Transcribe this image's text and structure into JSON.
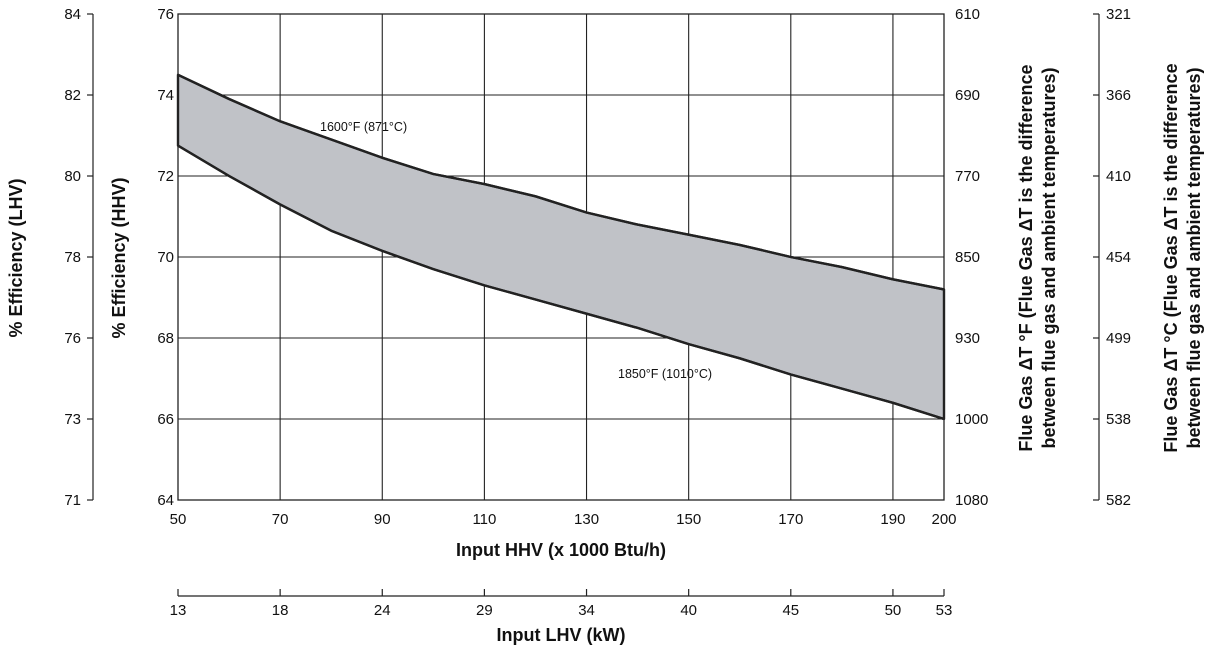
{
  "chart_data": {
    "type": "area",
    "x_axis_hhv": {
      "label": "Input HHV (x 1000 Btu/h)",
      "ticks": [
        50,
        70,
        90,
        110,
        130,
        150,
        170,
        190,
        200
      ],
      "range": [
        50,
        200
      ]
    },
    "x_axis_lhv": {
      "label": "Input LHV (kW)",
      "ticks": [
        {
          "label": "13",
          "at_hhv": 50
        },
        {
          "label": "18",
          "at_hhv": 70
        },
        {
          "label": "24",
          "at_hhv": 90
        },
        {
          "label": "29",
          "at_hhv": 110
        },
        {
          "label": "34",
          "at_hhv": 130
        },
        {
          "label": "40",
          "at_hhv": 150
        },
        {
          "label": "45",
          "at_hhv": 170
        },
        {
          "label": "50",
          "at_hhv": 190
        },
        {
          "label": "53",
          "at_hhv": 200
        }
      ]
    },
    "y_axis_hhv": {
      "label": "% Efficiency (HHV)",
      "ticks": [
        64,
        66,
        68,
        70,
        72,
        74,
        76
      ],
      "range": [
        64,
        76
      ]
    },
    "y_axis_lhv": {
      "label": "% Efficiency (LHV)",
      "ticks": [
        {
          "label": "71",
          "at_hhv": 64
        },
        {
          "label": "73",
          "at_hhv": 66
        },
        {
          "label": "76",
          "at_hhv": 68
        },
        {
          "label": "78",
          "at_hhv": 70
        },
        {
          "label": "80",
          "at_hhv": 72
        },
        {
          "label": "82",
          "at_hhv": 74
        },
        {
          "label": "84",
          "at_hhv": 76
        }
      ]
    },
    "y_axis_flue_f": {
      "label_line1": "Flue Gas ΔT °F (Flue Gas ΔT is the difference",
      "label_line2": "between flue gas and ambient temperatures)",
      "ticks": [
        {
          "label": "610",
          "at_hhv": 76
        },
        {
          "label": "690",
          "at_hhv": 74
        },
        {
          "label": "770",
          "at_hhv": 72
        },
        {
          "label": "850",
          "at_hhv": 70
        },
        {
          "label": "930",
          "at_hhv": 68
        },
        {
          "label": "1000",
          "at_hhv": 66
        },
        {
          "label": "1080",
          "at_hhv": 64
        }
      ]
    },
    "y_axis_flue_c": {
      "label_line1": "Flue Gas ΔT °C (Flue Gas ΔT is the difference",
      "label_line2": "between flue gas and ambient temperatures)",
      "ticks": [
        {
          "label": "321",
          "at_hhv": 76
        },
        {
          "label": "366",
          "at_hhv": 74
        },
        {
          "label": "410",
          "at_hhv": 72
        },
        {
          "label": "454",
          "at_hhv": 70
        },
        {
          "label": "499",
          "at_hhv": 68
        },
        {
          "label": "538",
          "at_hhv": 66
        },
        {
          "label": "582",
          "at_hhv": 64
        }
      ]
    },
    "series": [
      {
        "name": "1600°F (871°C)",
        "x": [
          50,
          60,
          70,
          80,
          90,
          100,
          110,
          120,
          130,
          140,
          150,
          160,
          170,
          180,
          190,
          200
        ],
        "y": [
          74.5,
          73.9,
          73.35,
          72.9,
          72.45,
          72.05,
          71.8,
          71.5,
          71.1,
          70.8,
          70.55,
          70.3,
          70.0,
          69.75,
          69.45,
          69.2
        ]
      },
      {
        "name": "1850°F (1010°C)",
        "x": [
          50,
          60,
          70,
          80,
          90,
          100,
          110,
          120,
          130,
          140,
          150,
          160,
          170,
          180,
          190,
          200
        ],
        "y": [
          72.75,
          72.0,
          71.3,
          70.65,
          70.15,
          69.7,
          69.3,
          68.95,
          68.6,
          68.25,
          67.85,
          67.5,
          67.1,
          66.75,
          66.4,
          66.0
        ]
      }
    ],
    "band_fill": "#c0c2c7",
    "line_color": "#222222",
    "grid": true
  }
}
